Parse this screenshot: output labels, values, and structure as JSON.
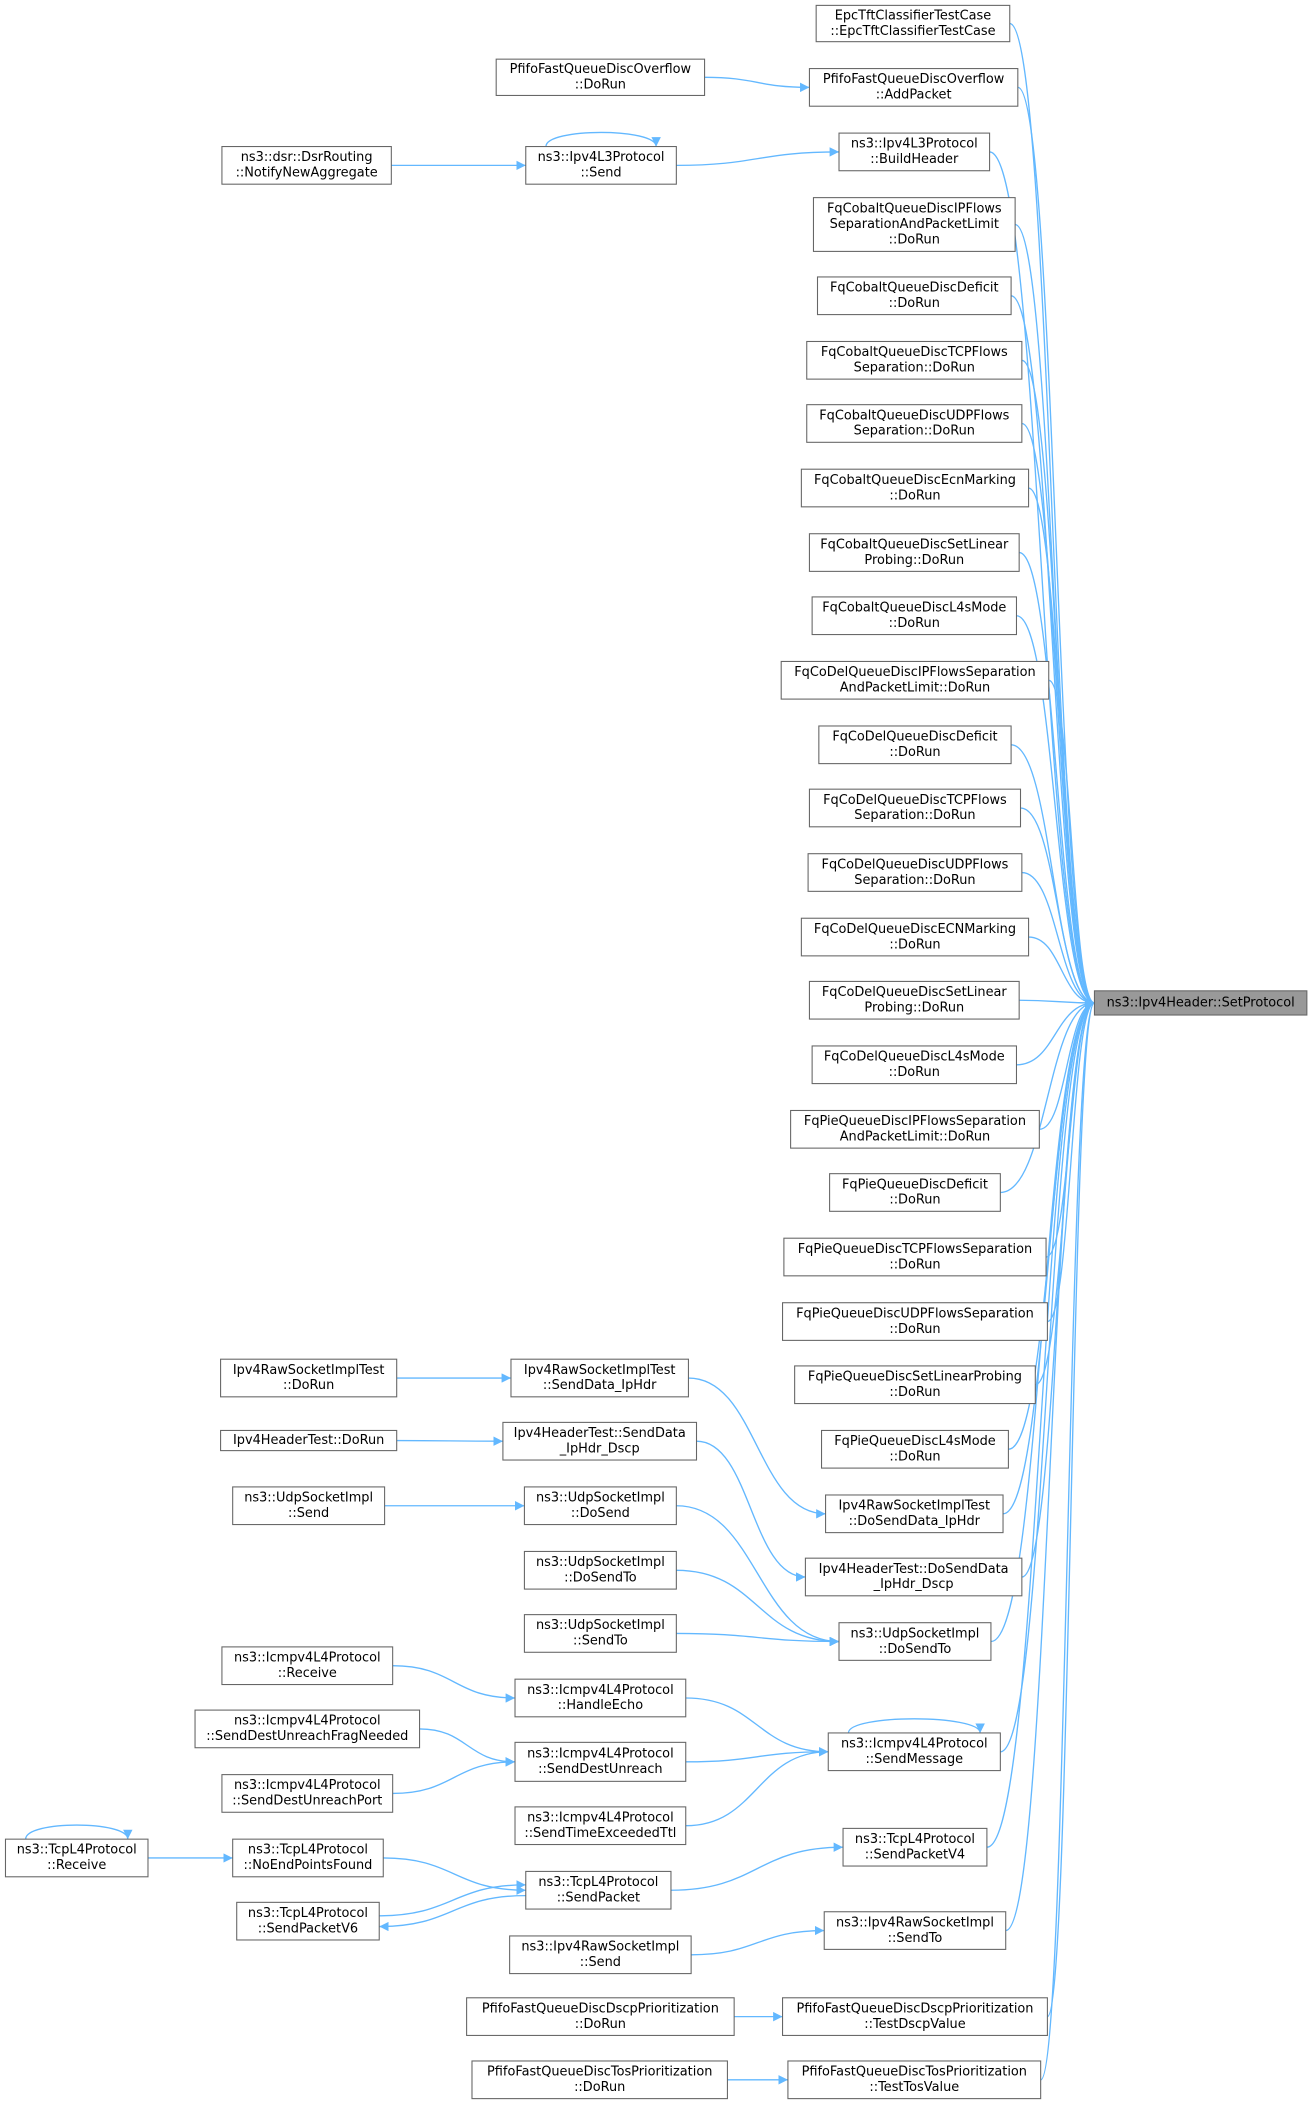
{
  "nodes": [
    {
      "label": [
        "ns3::Ipv4Header::SetProtocol"
      ]
    },
    {
      "label": [
        "EpcTftClassifierTestCase",
        "::EpcTftClassifierTestCase"
      ]
    },
    {
      "label": [
        "PfifoFastQueueDiscOverflow",
        "::AddPacket"
      ]
    },
    {
      "label": [
        "ns3::Ipv4L3Protocol",
        "::BuildHeader"
      ]
    },
    {
      "label": [
        "FqCobaltQueueDiscIPFlows",
        "SeparationAndPacketLimit",
        "::DoRun"
      ]
    },
    {
      "label": [
        "FqCobaltQueueDiscDeficit",
        "::DoRun"
      ]
    },
    {
      "label": [
        "FqCobaltQueueDiscTCPFlows",
        "Separation::DoRun"
      ]
    },
    {
      "label": [
        "FqCobaltQueueDiscUDPFlows",
        "Separation::DoRun"
      ]
    },
    {
      "label": [
        "FqCobaltQueueDiscEcnMarking",
        "::DoRun"
      ]
    },
    {
      "label": [
        "FqCobaltQueueDiscSetLinear",
        "Probing::DoRun"
      ]
    },
    {
      "label": [
        "FqCobaltQueueDiscL4sMode",
        "::DoRun"
      ]
    },
    {
      "label": [
        "FqCoDelQueueDiscIPFlowsSeparation",
        "AndPacketLimit::DoRun"
      ]
    },
    {
      "label": [
        "FqCoDelQueueDiscDeficit",
        "::DoRun"
      ]
    },
    {
      "label": [
        "FqCoDelQueueDiscTCPFlows",
        "Separation::DoRun"
      ]
    },
    {
      "label": [
        "FqCoDelQueueDiscUDPFlows",
        "Separation::DoRun"
      ]
    },
    {
      "label": [
        "FqCoDelQueueDiscECNMarking",
        "::DoRun"
      ]
    },
    {
      "label": [
        "FqCoDelQueueDiscSetLinear",
        "Probing::DoRun"
      ]
    },
    {
      "label": [
        "FqCoDelQueueDiscL4sMode",
        "::DoRun"
      ]
    },
    {
      "label": [
        "FqPieQueueDiscIPFlowsSeparation",
        "AndPacketLimit::DoRun"
      ]
    },
    {
      "label": [
        "FqPieQueueDiscDeficit",
        "::DoRun"
      ]
    },
    {
      "label": [
        "FqPieQueueDiscTCPFlowsSeparation",
        "::DoRun"
      ]
    },
    {
      "label": [
        "FqPieQueueDiscUDPFlowsSeparation",
        "::DoRun"
      ]
    },
    {
      "label": [
        "FqPieQueueDiscSetLinearProbing",
        "::DoRun"
      ]
    },
    {
      "label": [
        "FqPieQueueDiscL4sMode",
        "::DoRun"
      ]
    },
    {
      "label": [
        "Ipv4RawSocketImplTest",
        "::DoSendData_IpHdr"
      ]
    },
    {
      "label": [
        "Ipv4HeaderTest::DoSendData",
        "_IpHdr_Dscp"
      ]
    },
    {
      "label": [
        "ns3::UdpSocketImpl",
        "::DoSendTo"
      ]
    },
    {
      "label": [
        "ns3::Icmpv4L4Protocol",
        "::SendMessage"
      ]
    },
    {
      "label": [
        "ns3::TcpL4Protocol",
        "::SendPacketV4"
      ]
    },
    {
      "label": [
        "ns3::Ipv4RawSocketImpl",
        "::SendTo"
      ]
    },
    {
      "label": [
        "PfifoFastQueueDiscDscpPrioritization",
        "::TestDscpValue"
      ]
    },
    {
      "label": [
        "PfifoFastQueueDiscTosPrioritization",
        "::TestTosValue"
      ]
    },
    {
      "label": [
        "PfifoFastQueueDiscOverflow",
        "::DoRun"
      ]
    },
    {
      "label": [
        "ns3::Ipv4L3Protocol",
        "::Send"
      ]
    },
    {
      "label": [
        "ns3::dsr::DsrRouting",
        "::NotifyNewAggregate"
      ]
    },
    {
      "label": [
        "Ipv4RawSocketImplTest",
        "::SendData_IpHdr"
      ]
    },
    {
      "label": [
        "Ipv4RawSocketImplTest",
        "::DoRun"
      ]
    },
    {
      "label": [
        "Ipv4HeaderTest::SendData",
        "_IpHdr_Dscp"
      ]
    },
    {
      "label": [
        "Ipv4HeaderTest::DoRun"
      ]
    },
    {
      "label": [
        "ns3::UdpSocketImpl",
        "::DoSend"
      ]
    },
    {
      "label": [
        "ns3::UdpSocketImpl",
        "::Send"
      ]
    },
    {
      "label": [
        "ns3::UdpSocketImpl",
        "::DoSendTo"
      ]
    },
    {
      "label": [
        "ns3::UdpSocketImpl",
        "::SendTo"
      ]
    },
    {
      "label": [
        "ns3::Icmpv4L4Protocol",
        "::HandleEcho"
      ]
    },
    {
      "label": [
        "ns3::Icmpv4L4Protocol",
        "::Receive"
      ]
    },
    {
      "label": [
        "ns3::Icmpv4L4Protocol",
        "::SendDestUnreach"
      ]
    },
    {
      "label": [
        "ns3::Icmpv4L4Protocol",
        "::SendDestUnreachFragNeeded"
      ]
    },
    {
      "label": [
        "ns3::Icmpv4L4Protocol",
        "::SendDestUnreachPort"
      ]
    },
    {
      "label": [
        "ns3::Icmpv4L4Protocol",
        "::SendTimeExceededTtl"
      ]
    },
    {
      "label": [
        "ns3::TcpL4Protocol",
        "::SendPacket"
      ]
    },
    {
      "label": [
        "ns3::TcpL4Protocol",
        "::NoEndPointsFound"
      ]
    },
    {
      "label": [
        "ns3::TcpL4Protocol",
        "::SendPacketV6"
      ]
    },
    {
      "label": [
        "ns3::TcpL4Protocol",
        "::Receive"
      ]
    },
    {
      "label": [
        "ns3::Ipv4RawSocketImpl",
        "::Send"
      ]
    },
    {
      "label": [
        "PfifoFastQueueDiscDscpPrioritization",
        "::DoRun"
      ]
    },
    {
      "label": [
        "PfifoFastQueueDiscTosPrioritization",
        "::DoRun"
      ]
    }
  ]
}
